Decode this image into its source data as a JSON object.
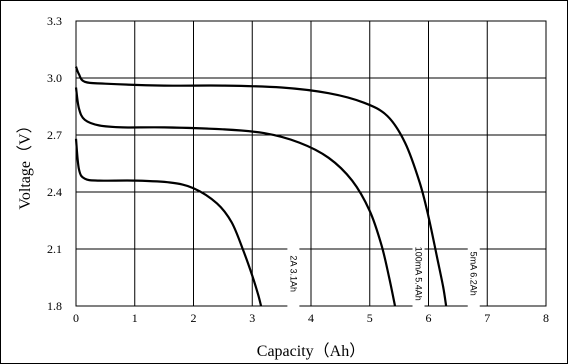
{
  "chart_data": {
    "type": "line",
    "title": "",
    "xlabel": "Capacity（Ah）",
    "ylabel": "Voltage（V）",
    "xlim": [
      0,
      8
    ],
    "ylim": [
      1.8,
      3.3
    ],
    "x_ticks": [
      "0",
      "1",
      "2",
      "3",
      "4",
      "5",
      "6",
      "7",
      "8"
    ],
    "y_ticks": [
      "1.8",
      "2.1",
      "2.4",
      "2.7",
      "3.0",
      "3.3"
    ],
    "grid": true,
    "series": [
      {
        "name": "2A 3.1Ah",
        "label_x": 3.7,
        "label_y": 1.97,
        "x": [
          0.0,
          0.05,
          0.15,
          0.4,
          1.0,
          1.6,
          2.0,
          2.4,
          2.65,
          2.85,
          3.0,
          3.1,
          3.15
        ],
        "y": [
          2.68,
          2.52,
          2.47,
          2.46,
          2.46,
          2.45,
          2.42,
          2.34,
          2.24,
          2.09,
          1.96,
          1.86,
          1.8
        ]
      },
      {
        "name": "100mA 5.4Ah",
        "label_x": 5.83,
        "label_y": 1.97,
        "x": [
          0.0,
          0.05,
          0.15,
          0.4,
          0.8,
          1.5,
          2.5,
          3.2,
          3.8,
          4.3,
          4.7,
          5.0,
          5.2,
          5.33,
          5.43
        ],
        "y": [
          2.95,
          2.84,
          2.78,
          2.75,
          2.74,
          2.74,
          2.73,
          2.71,
          2.66,
          2.58,
          2.46,
          2.3,
          2.12,
          1.95,
          1.8
        ]
      },
      {
        "name": "5mA 6.2Ah",
        "label_x": 6.77,
        "label_y": 1.97,
        "x": [
          0.0,
          0.05,
          0.15,
          0.5,
          1.5,
          2.5,
          3.5,
          4.3,
          4.9,
          5.3,
          5.6,
          5.85,
          6.0,
          6.15,
          6.25,
          6.3
        ],
        "y": [
          3.06,
          3.02,
          2.98,
          2.97,
          2.96,
          2.96,
          2.95,
          2.92,
          2.87,
          2.8,
          2.66,
          2.45,
          2.27,
          2.05,
          1.9,
          1.8
        ]
      }
    ]
  }
}
